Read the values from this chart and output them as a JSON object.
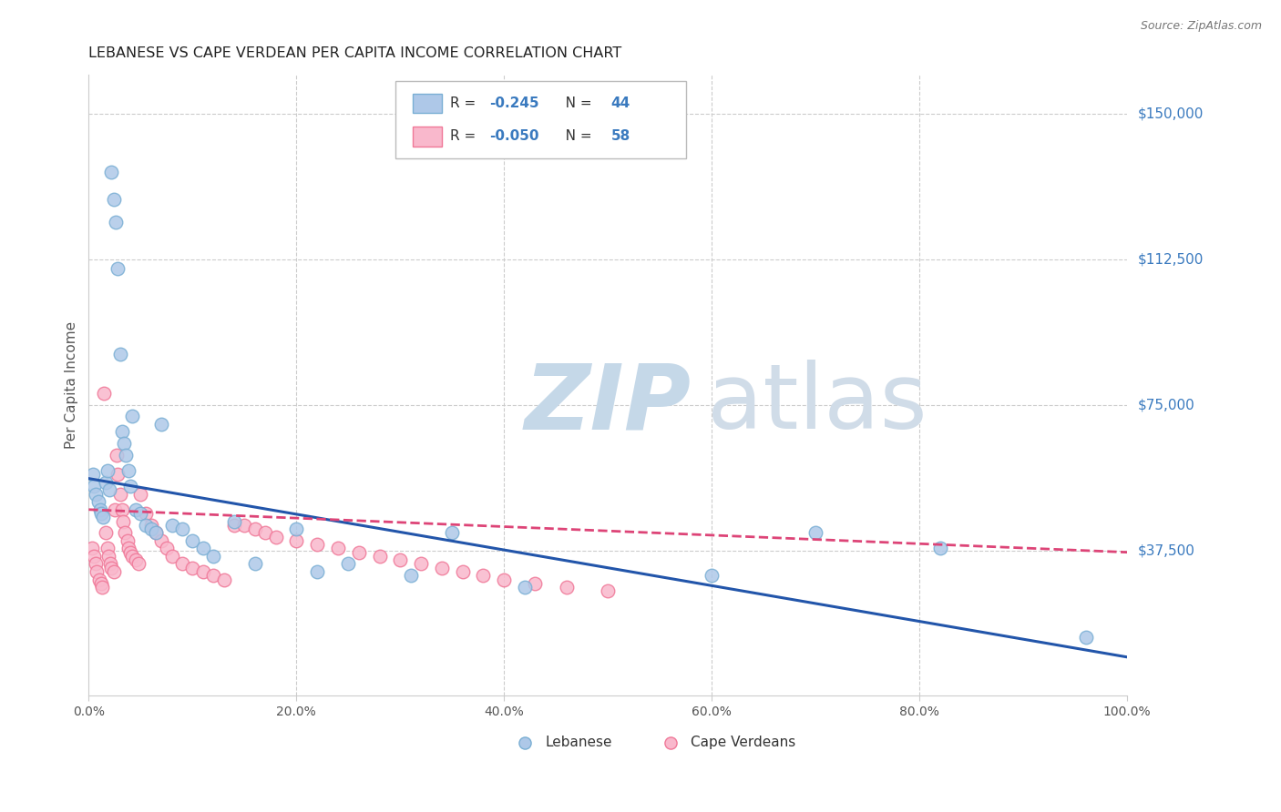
{
  "title": "LEBANESE VS CAPE VERDEAN PER CAPITA INCOME CORRELATION CHART",
  "source": "Source: ZipAtlas.com",
  "ylabel": "Per Capita Income",
  "ytick_labels": [
    "$37,500",
    "$75,000",
    "$112,500",
    "$150,000"
  ],
  "ytick_values": [
    37500,
    75000,
    112500,
    150000
  ],
  "ymin": 0,
  "ymax": 160000,
  "xmin": 0.0,
  "xmax": 1.0,
  "watermark_zip_color": "#c5d8e8",
  "watermark_atlas_color": "#d0dce8",
  "background_color": "#ffffff",
  "plot_bg_color": "#ffffff",
  "grid_color": "#cccccc",
  "blue_scatter_face": "#aec8e8",
  "blue_scatter_edge": "#7aafd4",
  "pink_scatter_face": "#f9b8cc",
  "pink_scatter_edge": "#f07898",
  "line_blue": "#2255aa",
  "line_pink": "#dd4477",
  "legend_R1": "-0.245",
  "legend_N1": "44",
  "legend_R2": "-0.050",
  "legend_N2": "58",
  "legend_text_color": "#333333",
  "legend_value_color": "#3a7abf",
  "right_label_color": "#3a7abf",
  "title_color": "#222222",
  "source_color": "#777777",
  "ylabel_color": "#555555",
  "xtick_color": "#555555",
  "lebanese_x": [
    0.004,
    0.005,
    0.007,
    0.009,
    0.011,
    0.012,
    0.014,
    0.016,
    0.018,
    0.02,
    0.022,
    0.024,
    0.026,
    0.028,
    0.03,
    0.032,
    0.034,
    0.036,
    0.038,
    0.04,
    0.042,
    0.045,
    0.05,
    0.055,
    0.06,
    0.065,
    0.07,
    0.08,
    0.09,
    0.1,
    0.11,
    0.12,
    0.14,
    0.16,
    0.2,
    0.22,
    0.25,
    0.31,
    0.35,
    0.42,
    0.6,
    0.7,
    0.82,
    0.96
  ],
  "lebanese_y": [
    57000,
    54000,
    52000,
    50000,
    48000,
    47000,
    46000,
    55000,
    58000,
    53000,
    135000,
    128000,
    122000,
    110000,
    88000,
    68000,
    65000,
    62000,
    58000,
    54000,
    72000,
    48000,
    47000,
    44000,
    43000,
    42000,
    70000,
    44000,
    43000,
    40000,
    38000,
    36000,
    45000,
    34000,
    43000,
    32000,
    34000,
    31000,
    42000,
    28000,
    31000,
    42000,
    38000,
    15000
  ],
  "capeverdean_x": [
    0.003,
    0.005,
    0.007,
    0.008,
    0.01,
    0.012,
    0.013,
    0.015,
    0.016,
    0.018,
    0.019,
    0.021,
    0.022,
    0.024,
    0.025,
    0.027,
    0.028,
    0.03,
    0.032,
    0.033,
    0.035,
    0.037,
    0.038,
    0.04,
    0.042,
    0.045,
    0.048,
    0.05,
    0.055,
    0.06,
    0.065,
    0.07,
    0.075,
    0.08,
    0.09,
    0.1,
    0.11,
    0.12,
    0.13,
    0.14,
    0.15,
    0.16,
    0.17,
    0.18,
    0.2,
    0.22,
    0.24,
    0.26,
    0.28,
    0.3,
    0.32,
    0.34,
    0.36,
    0.38,
    0.4,
    0.43,
    0.46,
    0.5
  ],
  "capeverdean_y": [
    38000,
    36000,
    34000,
    32000,
    30000,
    29000,
    28000,
    78000,
    42000,
    38000,
    36000,
    34000,
    33000,
    32000,
    48000,
    62000,
    57000,
    52000,
    48000,
    45000,
    42000,
    40000,
    38000,
    37000,
    36000,
    35000,
    34000,
    52000,
    47000,
    44000,
    42000,
    40000,
    38000,
    36000,
    34000,
    33000,
    32000,
    31000,
    30000,
    44000,
    44000,
    43000,
    42000,
    41000,
    40000,
    39000,
    38000,
    37000,
    36000,
    35000,
    34000,
    33000,
    32000,
    31000,
    30000,
    29000,
    28000,
    27000
  ]
}
